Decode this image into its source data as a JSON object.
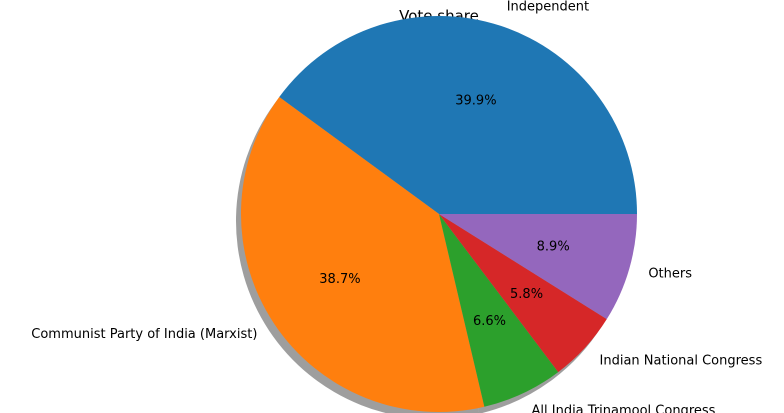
{
  "chart_data": {
    "type": "pie",
    "title": "Vote share",
    "shadow": true,
    "start_angle_deg": 0,
    "direction": "counterclockwise",
    "slices": [
      {
        "label": "Independent",
        "value": 39.9,
        "pct_label": "39.9%",
        "color": "#1f77b4"
      },
      {
        "label": "Communist Party of India  (Marxist)",
        "value": 38.7,
        "pct_label": "38.7%",
        "color": "#ff7f0e"
      },
      {
        "label": "All India Trinamool Congress",
        "value": 6.6,
        "pct_label": "6.6%",
        "color": "#2ca02c"
      },
      {
        "label": "Indian National Congress",
        "value": 5.8,
        "pct_label": "5.8%",
        "color": "#d62728"
      },
      {
        "label": "Others",
        "value": 8.9,
        "pct_label": "8.9%",
        "color": "#9467bd"
      }
    ]
  }
}
